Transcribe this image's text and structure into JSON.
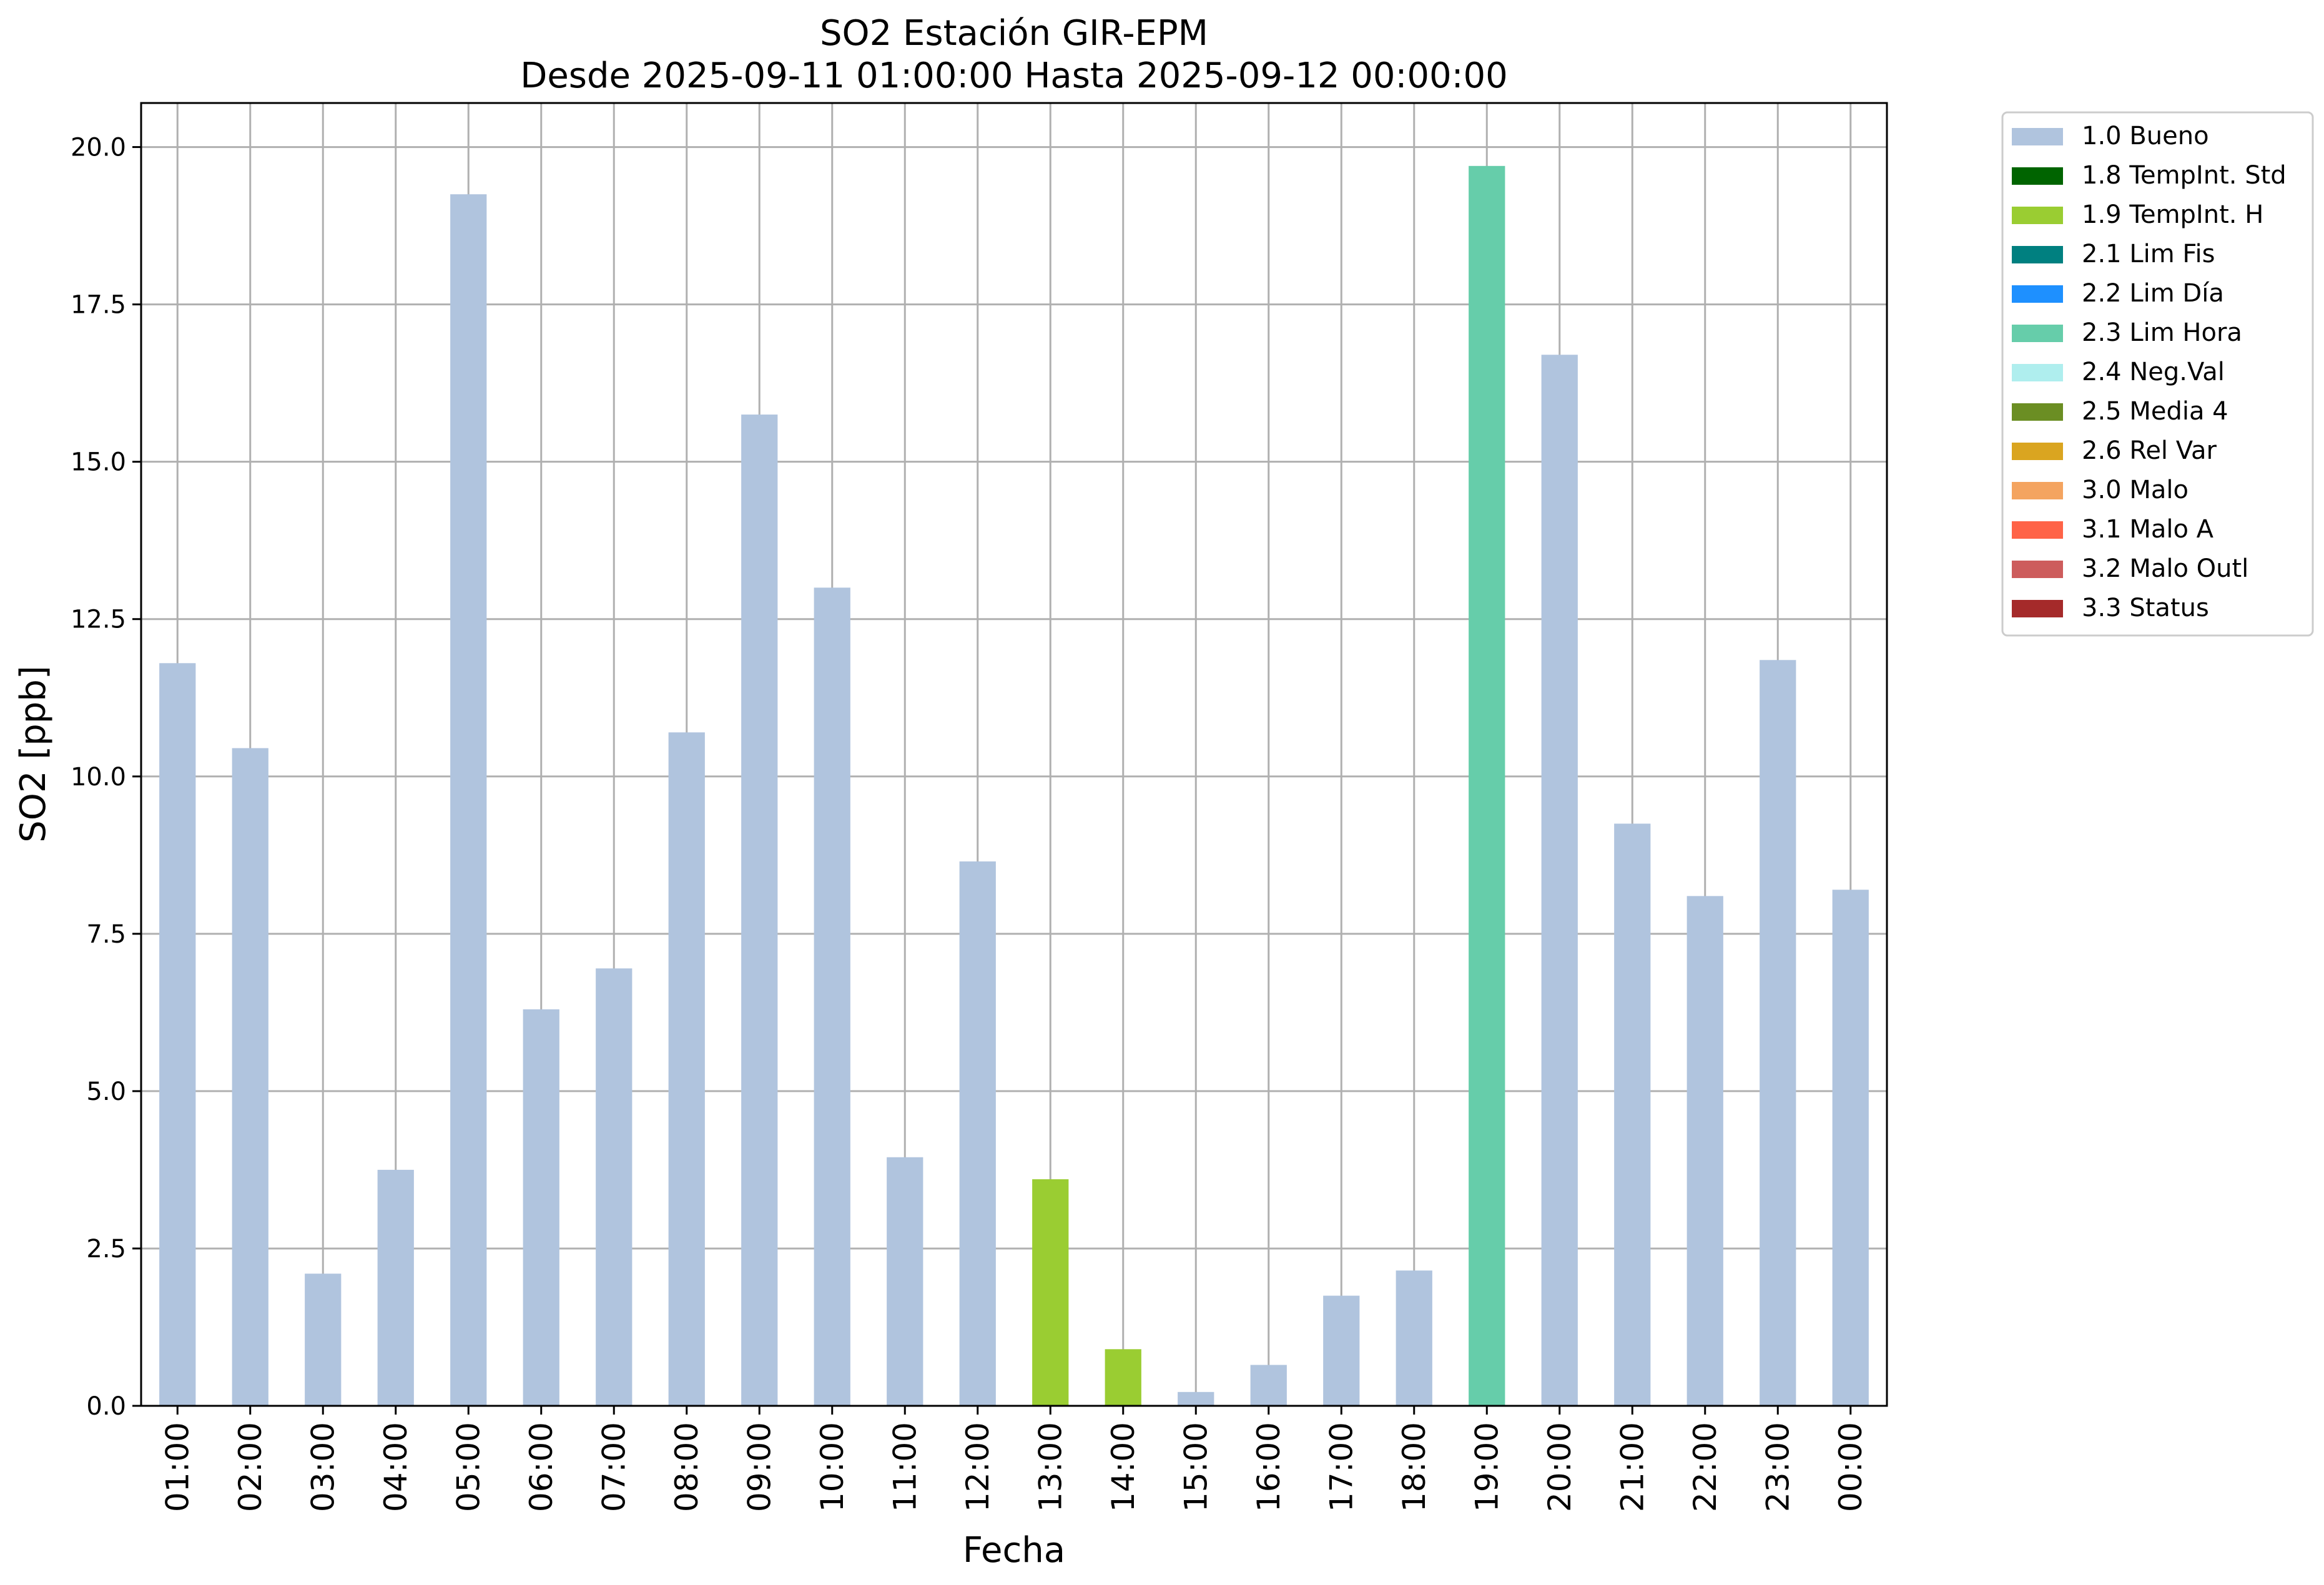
{
  "chart_data": {
    "type": "bar",
    "title": "SO2 Estación GIR-EPM",
    "subtitle": "Desde 2025-09-11 01:00:00 Hasta 2025-09-12 00:00:00",
    "xlabel": "Fecha",
    "ylabel": "SO2 [ppb]",
    "ylim": [
      0,
      20.7
    ],
    "yticks": [
      0.0,
      2.5,
      5.0,
      7.5,
      10.0,
      12.5,
      15.0,
      17.5,
      20.0
    ],
    "ytick_labels": [
      "0.0",
      "2.5",
      "5.0",
      "7.5",
      "10.0",
      "12.5",
      "15.0",
      "17.5",
      "20.0"
    ],
    "grid": true,
    "legend_position": "outside-top-right",
    "categories": [
      "01:00",
      "02:00",
      "03:00",
      "04:00",
      "05:00",
      "06:00",
      "07:00",
      "08:00",
      "09:00",
      "10:00",
      "11:00",
      "12:00",
      "13:00",
      "14:00",
      "15:00",
      "16:00",
      "17:00",
      "18:00",
      "19:00",
      "20:00",
      "21:00",
      "22:00",
      "23:00",
      "00:00"
    ],
    "values": [
      11.8,
      10.45,
      2.1,
      3.75,
      19.25,
      6.3,
      6.95,
      10.7,
      15.75,
      13.0,
      3.95,
      8.65,
      3.6,
      0.9,
      0.22,
      0.65,
      1.75,
      2.15,
      19.7,
      16.7,
      9.25,
      8.1,
      11.85,
      8.2
    ],
    "flags": [
      "1.0 Bueno",
      "1.0 Bueno",
      "1.0 Bueno",
      "1.0 Bueno",
      "1.0 Bueno",
      "1.0 Bueno",
      "1.0 Bueno",
      "1.0 Bueno",
      "1.0 Bueno",
      "1.0 Bueno",
      "1.0 Bueno",
      "1.0 Bueno",
      "1.9 TempInt. H",
      "1.9 TempInt. H",
      "1.0 Bueno",
      "1.0 Bueno",
      "1.0 Bueno",
      "1.0 Bueno",
      "2.3 Lim Hora",
      "1.0 Bueno",
      "1.0 Bueno",
      "1.0 Bueno",
      "1.0 Bueno",
      "1.0 Bueno"
    ],
    "legend": [
      {
        "label": "1.0 Bueno",
        "color": "#b0c4de"
      },
      {
        "label": "1.8 TempInt. Std",
        "color": "#006400"
      },
      {
        "label": "1.9 TempInt. H",
        "color": "#9acd32"
      },
      {
        "label": "2.1 Lim Fis",
        "color": "#008080"
      },
      {
        "label": "2.2 Lim Día",
        "color": "#1e90ff"
      },
      {
        "label": "2.3 Lim Hora",
        "color": "#66cdaa"
      },
      {
        "label": "2.4 Neg.Val",
        "color": "#afeeee"
      },
      {
        "label": "2.5 Media 4",
        "color": "#6b8e23"
      },
      {
        "label": "2.6 Rel Var",
        "color": "#daa520"
      },
      {
        "label": "3.0 Malo",
        "color": "#f4a460"
      },
      {
        "label": "3.1 Malo A",
        "color": "#ff6347"
      },
      {
        "label": "3.2 Malo Outl",
        "color": "#cd5c5c"
      },
      {
        "label": "3.3 Status",
        "color": "#a52a2a"
      }
    ]
  }
}
